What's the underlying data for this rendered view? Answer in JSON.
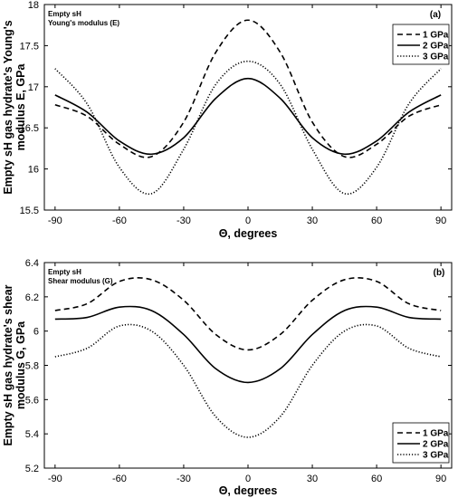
{
  "chart_data": [
    {
      "type": "line",
      "panel_label": "(a)",
      "annotations": [
        "Empty sH",
        "Young's modulus (E)"
      ],
      "ylabel_lines": [
        "Empty sH gas hydrate's Young's",
        "modulus E, GPa"
      ],
      "xlabel": "Θ, degrees",
      "xlim": [
        -95,
        95
      ],
      "ylim": [
        15.5,
        18
      ],
      "xticks": [
        -90,
        -60,
        -30,
        0,
        30,
        60,
        90
      ],
      "yticks": [
        15.5,
        16,
        16.5,
        17,
        17.5,
        18
      ],
      "ytick_labels": [
        "15.5",
        "16",
        "16.5",
        "17",
        "17.5",
        "18"
      ],
      "legend_position": "top-right",
      "x": [
        -90,
        -75,
        -60,
        -45,
        -30,
        -15,
        0,
        15,
        30,
        45,
        60,
        75,
        90
      ],
      "series": [
        {
          "name": "1 GPa",
          "dash": "dashed",
          "values": [
            16.78,
            16.64,
            16.3,
            16.15,
            16.57,
            17.42,
            17.81,
            17.42,
            16.57,
            16.15,
            16.3,
            16.64,
            16.78
          ]
        },
        {
          "name": "2 GPa",
          "dash": "solid",
          "values": [
            16.9,
            16.69,
            16.34,
            16.18,
            16.38,
            16.86,
            17.1,
            16.86,
            16.38,
            16.18,
            16.34,
            16.69,
            16.9
          ]
        },
        {
          "name": "3 GPa",
          "dash": "dotted",
          "values": [
            17.22,
            16.79,
            16.02,
            15.7,
            16.24,
            17.03,
            17.31,
            17.03,
            16.24,
            15.7,
            16.02,
            16.79,
            17.22
          ]
        }
      ]
    },
    {
      "type": "line",
      "panel_label": "(b)",
      "annotations": [
        "Empty sH",
        "Shear modulus (G)"
      ],
      "ylabel_lines": [
        "Empty sH gas hydrate's shear",
        "modulus G, GPa"
      ],
      "xlabel": "Θ, degrees",
      "xlim": [
        -95,
        95
      ],
      "ylim": [
        5.2,
        6.4
      ],
      "xticks": [
        -90,
        -60,
        -30,
        0,
        30,
        60,
        90
      ],
      "yticks": [
        5.2,
        5.4,
        5.6,
        5.8,
        6.0,
        6.2,
        6.4
      ],
      "ytick_labels": [
        "5.2",
        "5.4",
        "5.6",
        "5.8",
        "6",
        "6.2",
        "6.4"
      ],
      "legend_position": "bottom-right",
      "x": [
        -90,
        -75,
        -60,
        -45,
        -30,
        -15,
        0,
        15,
        30,
        45,
        60,
        75,
        90
      ],
      "series": [
        {
          "name": "1 GPa",
          "dash": "dashed",
          "values": [
            6.12,
            6.16,
            6.29,
            6.3,
            6.18,
            5.98,
            5.89,
            5.98,
            6.18,
            6.3,
            6.29,
            6.16,
            6.12
          ]
        },
        {
          "name": "2 GPa",
          "dash": "solid",
          "values": [
            6.07,
            6.08,
            6.14,
            6.12,
            5.98,
            5.78,
            5.7,
            5.78,
            5.98,
            6.12,
            6.14,
            6.08,
            6.07
          ]
        },
        {
          "name": "3 GPa",
          "dash": "dotted",
          "values": [
            5.85,
            5.9,
            6.03,
            6.0,
            5.8,
            5.5,
            5.38,
            5.5,
            5.8,
            6.0,
            6.03,
            5.9,
            5.85
          ]
        }
      ]
    }
  ]
}
